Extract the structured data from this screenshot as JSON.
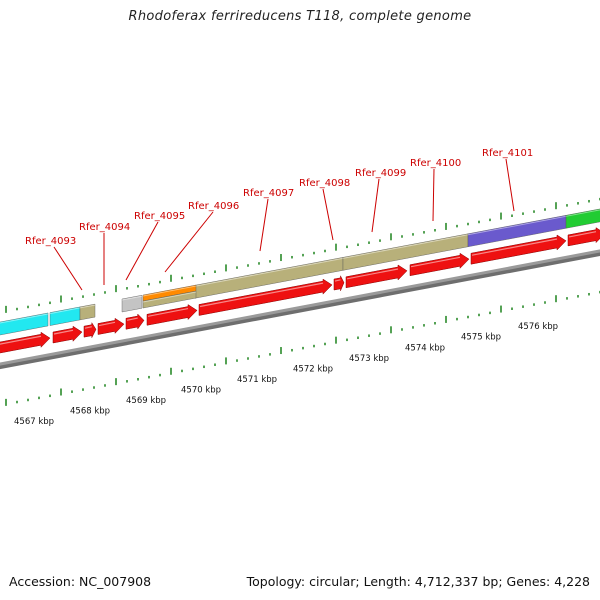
{
  "title": "Rhodoferax ferrireducens T118, complete genome",
  "footer": {
    "accession": "Accession: NC_007908",
    "summary": "Topology: circular; Length: 4,712,337 bp; Genes: 4,228"
  },
  "colors": {
    "cds": "#ee1111",
    "khaki": "#b8b07a",
    "cyan": "#22e8f0",
    "purple": "#6a5acd",
    "green": "#22cc33",
    "orange": "#ff8a00",
    "gray": "#c4c4c4",
    "label": "#cc0000",
    "tick": "#2a8a2a"
  },
  "gene_labels": [
    {
      "name": "Rfer_4093"
    },
    {
      "name": "Rfer_4094"
    },
    {
      "name": "Rfer_4095"
    },
    {
      "name": "Rfer_4096"
    },
    {
      "name": "Rfer_4097"
    },
    {
      "name": "Rfer_4098"
    },
    {
      "name": "Rfer_4099"
    },
    {
      "name": "Rfer_4100"
    },
    {
      "name": "Rfer_4101"
    }
  ],
  "kbp_labels": [
    "4567 kbp",
    "4568 kbp",
    "4569 kbp",
    "4570 kbp",
    "4571 kbp",
    "4572 kbp",
    "4573 kbp",
    "4574 kbp",
    "4575 kbp",
    "4576 kbp"
  ]
}
